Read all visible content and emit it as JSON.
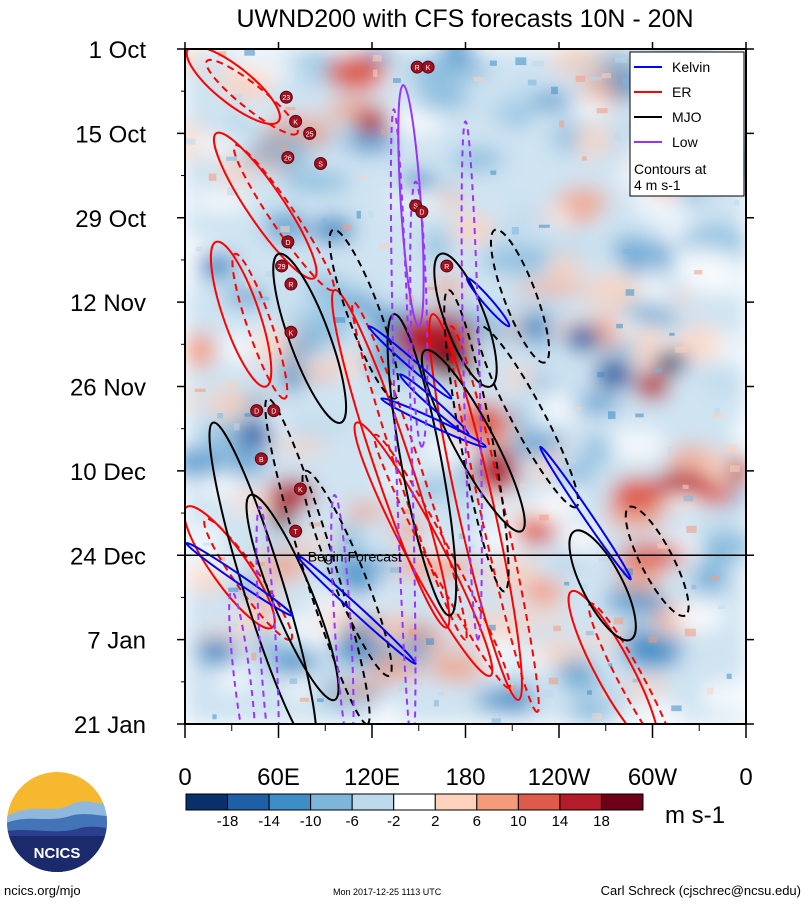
{
  "chart_data": {
    "type": "heatmap",
    "title": "UWND200 with CFS forecasts  10N - 20N",
    "x_tick_labels": [
      "0",
      "60E",
      "120E",
      "180",
      "120W",
      "60W",
      "0"
    ],
    "x_ticks_deg_east": [
      0,
      60,
      120,
      180,
      240,
      300,
      360
    ],
    "y_tick_labels": [
      "1 Oct",
      "15 Oct",
      "29 Oct",
      "12 Nov",
      "26 Nov",
      "10 Dec",
      "24 Dec",
      "7 Jan",
      "21 Jan"
    ],
    "y_ticks_days_since_1_oct": [
      0,
      14,
      28,
      42,
      56,
      70,
      84,
      98,
      112
    ],
    "forecast_line": {
      "day": 84,
      "label": "Begin Forecast"
    },
    "colorbar": {
      "unit_label": "m s-1",
      "tick_labels": [
        "-18",
        "-14",
        "-10",
        "-6",
        "-2",
        "2",
        "6",
        "10",
        "14",
        "18"
      ],
      "colors": [
        "#08306b",
        "#1f5fa6",
        "#3d8ec7",
        "#7eb6da",
        "#bcd9ec",
        "#ffffff",
        "#fcd2bd",
        "#f49b7c",
        "#de5a4a",
        "#b61b29",
        "#6f0019"
      ]
    },
    "legend": {
      "placement": "top-right",
      "entries": [
        {
          "name": "Kelvin",
          "color": "#0000ff",
          "style": "solid"
        },
        {
          "name": "ER",
          "color": "#ff0000",
          "style": "solid"
        },
        {
          "name": "MJO",
          "color": "#000000",
          "style": "solid"
        },
        {
          "name": "Low",
          "color": "#9933ff",
          "style": "solid"
        }
      ],
      "note": "Contours at\n4 m s-1"
    },
    "storm_markers": [
      {
        "label": "R",
        "lon": 149,
        "day": 3
      },
      {
        "label": "K",
        "lon": 156,
        "day": 3
      },
      {
        "label": "23",
        "lon": 65,
        "day": 8
      },
      {
        "label": "K",
        "lon": 71,
        "day": 12
      },
      {
        "label": "25",
        "lon": 80,
        "day": 14
      },
      {
        "label": "26",
        "lon": 66,
        "day": 18
      },
      {
        "label": "S",
        "lon": 87,
        "day": 19
      },
      {
        "label": "S",
        "lon": 148,
        "day": 26
      },
      {
        "label": "D",
        "lon": 152,
        "day": 27
      },
      {
        "label": "D",
        "lon": 66,
        "day": 32
      },
      {
        "label": "29",
        "lon": 62,
        "day": 36
      },
      {
        "label": "R",
        "lon": 68,
        "day": 39
      },
      {
        "label": "R",
        "lon": 168,
        "day": 36
      },
      {
        "label": "K",
        "lon": 68,
        "day": 47
      },
      {
        "label": "D",
        "lon": 46,
        "day": 60
      },
      {
        "label": "D",
        "lon": 57,
        "day": 60
      },
      {
        "label": "B",
        "lon": 49,
        "day": 68
      },
      {
        "label": "K",
        "lon": 74,
        "day": 73
      },
      {
        "label": "T",
        "lon": 71,
        "day": 80
      }
    ],
    "series_features": {
      "kelvin": [
        [
          118,
          46,
          171,
          58
        ],
        [
          138,
          54,
          182,
          64
        ],
        [
          126,
          58,
          193,
          66
        ],
        [
          181,
          38,
          208,
          46
        ],
        [
          228,
          66,
          286,
          88
        ],
        [
          72,
          84,
          148,
          102
        ],
        [
          1,
          82,
          69,
          94
        ]
      ],
      "er_positive": [
        [
          2,
          0,
          60,
          12
        ],
        [
          20,
          14,
          83,
          38
        ],
        [
          110,
          62,
          196,
          104
        ],
        [
          96,
          40,
          168,
          96
        ],
        [
          159,
          44,
          214,
          108
        ],
        [
          20,
          32,
          52,
          56
        ],
        [
          248,
          90,
          302,
          116
        ],
        [
          1,
          76,
          56,
          96
        ]
      ],
      "mjo_positive": [
        [
          154,
          50,
          216,
          80
        ],
        [
          134,
          44,
          170,
          94
        ],
        [
          42,
          74,
          96,
          108
        ],
        [
          18,
          62,
          82,
          116
        ],
        [
          60,
          34,
          100,
          62
        ],
        [
          164,
          34,
          196,
          56
        ],
        [
          250,
          80,
          286,
          98
        ]
      ],
      "low_negative": [
        [
          96,
          74,
          106,
          116
        ],
        [
          134,
          10,
          146,
          116
        ],
        [
          180,
          12,
          188,
          98
        ],
        [
          148,
          22,
          152,
          66
        ],
        [
          30,
          90,
          44,
          120
        ],
        [
          48,
          76,
          58,
          120
        ]
      ]
    }
  },
  "footer": {
    "left": "ncics.org/mjo",
    "center": "Mon 2017-12-25 1113 UTC",
    "right": "Carl Schreck (cjschrec@ncsu.edu)"
  },
  "logo": {
    "text": "NCICS"
  }
}
